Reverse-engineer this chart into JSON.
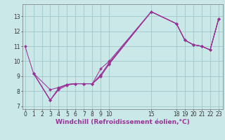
{
  "xlabel": "Windchill (Refroidissement éolien,°C)",
  "bg_color": "#cbe8e8",
  "grid_color": "#a0c8c8",
  "line_color": "#993399",
  "lines": [
    {
      "x": [
        0,
        1,
        3,
        4,
        5,
        6,
        7,
        8,
        9,
        10,
        15,
        18,
        19,
        20,
        21,
        22,
        23
      ],
      "y": [
        11.0,
        9.2,
        8.1,
        8.25,
        8.45,
        8.5,
        8.5,
        8.5,
        9.0,
        9.8,
        13.3,
        12.5,
        11.4,
        11.1,
        11.0,
        10.75,
        12.8
      ]
    },
    {
      "x": [
        1,
        3,
        4,
        5,
        6,
        7,
        8,
        9,
        10,
        15,
        18,
        19,
        20,
        21,
        22,
        23
      ],
      "y": [
        9.2,
        7.4,
        8.1,
        8.4,
        8.5,
        8.5,
        8.5,
        9.0,
        9.85,
        13.3,
        12.5,
        11.4,
        11.1,
        11.0,
        10.75,
        12.8
      ]
    },
    {
      "x": [
        1,
        3,
        4,
        5,
        6,
        7,
        8,
        9,
        10,
        15,
        18,
        19,
        20,
        21,
        22,
        23
      ],
      "y": [
        9.2,
        7.4,
        8.2,
        8.45,
        8.5,
        8.5,
        8.5,
        9.1,
        9.9,
        13.3,
        12.5,
        11.4,
        11.1,
        11.0,
        10.75,
        12.8
      ]
    },
    {
      "x": [
        1,
        3,
        4,
        5,
        6,
        7,
        8,
        9,
        10,
        15,
        18,
        19,
        20,
        21,
        22,
        23
      ],
      "y": [
        9.2,
        7.4,
        8.2,
        8.45,
        8.5,
        8.5,
        8.5,
        9.5,
        10.0,
        13.3,
        12.5,
        11.4,
        11.1,
        11.0,
        10.75,
        12.8
      ]
    }
  ],
  "xlim": [
    -0.3,
    23.5
  ],
  "ylim": [
    6.8,
    13.8
  ],
  "xticks": [
    0,
    1,
    2,
    3,
    4,
    5,
    6,
    7,
    8,
    9,
    10,
    15,
    18,
    19,
    20,
    21,
    22,
    23
  ],
  "yticks": [
    7,
    8,
    9,
    10,
    11,
    12,
    13
  ],
  "tick_fontsize": 5.5,
  "label_fontsize": 6.5
}
